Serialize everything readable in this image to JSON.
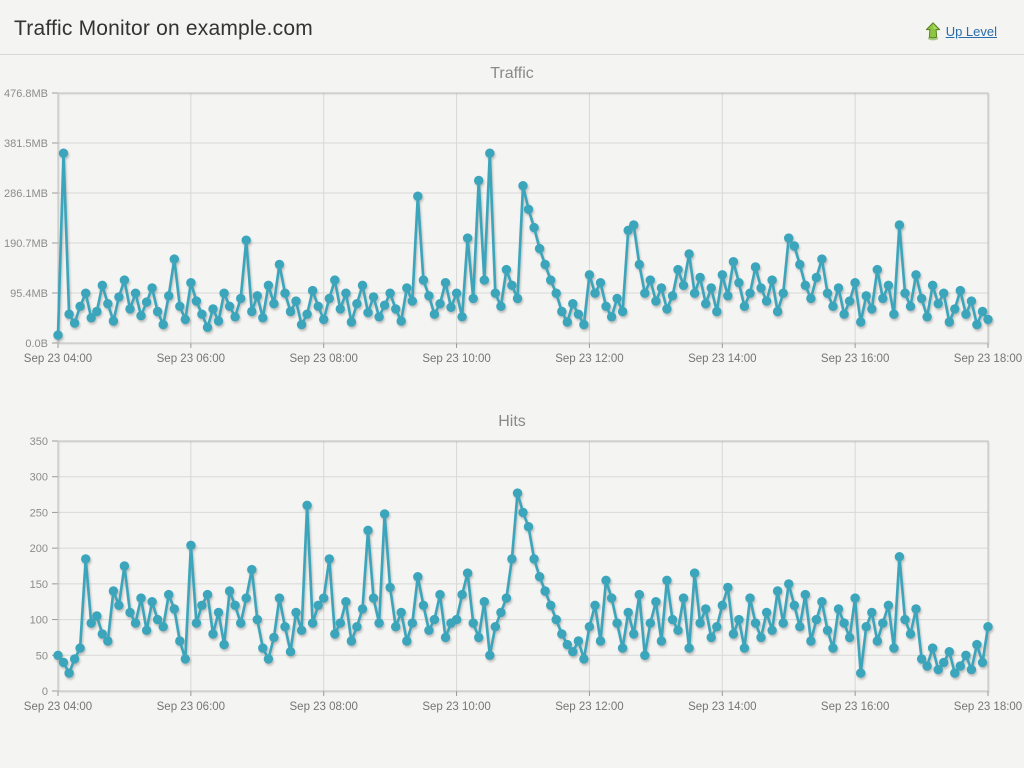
{
  "page": {
    "title": "Traffic Monitor on example.com",
    "up_level_label": "Up Level"
  },
  "colors": {
    "page_bg": "#f4f4f2",
    "series": "#3ba5bc",
    "grid": "#d8d8d6",
    "border": "#bfbfbd",
    "tick": "#9a9a98",
    "y_label_text": "#8c8c8c",
    "x_label_text": "#757575",
    "title_text": "#8a8a8a",
    "header_text": "#333333",
    "link": "#2a6da9",
    "arrow_green": "#8dc63f",
    "arrow_green_dark": "#55801f"
  },
  "icons": {
    "up_level": "up-arrow-icon"
  },
  "chart_data": [
    {
      "type": "line",
      "title": "Traffic",
      "unit": "MB",
      "legend": "none",
      "grid": true,
      "markers": true,
      "x_tick_labels": [
        "Sep 23 04:00",
        "Sep 23 06:00",
        "Sep 23 08:00",
        "Sep 23 10:00",
        "Sep 23 12:00",
        "Sep 23 14:00",
        "Sep 23 16:00",
        "Sep 23 18:00"
      ],
      "y_tick_labels": [
        "0.0B",
        "95.4MB",
        "190.7MB",
        "286.1MB",
        "381.5MB",
        "476.8MB"
      ],
      "y_tick_values": [
        0,
        95.4,
        190.7,
        286.1,
        381.5,
        476.8
      ],
      "ylim": [
        0,
        476.8
      ],
      "values": [
        15,
        362,
        55,
        38,
        70,
        95,
        48,
        60,
        110,
        75,
        42,
        88,
        120,
        65,
        95,
        52,
        78,
        105,
        60,
        35,
        90,
        160,
        70,
        45,
        115,
        80,
        55,
        30,
        65,
        42,
        95,
        70,
        50,
        85,
        196,
        60,
        90,
        48,
        110,
        75,
        150,
        95,
        60,
        80,
        35,
        55,
        100,
        70,
        45,
        85,
        120,
        65,
        95,
        40,
        75,
        110,
        58,
        88,
        50,
        72,
        95,
        65,
        42,
        105,
        80,
        280,
        120,
        90,
        55,
        75,
        115,
        68,
        95,
        50,
        200,
        85,
        310,
        120,
        362,
        95,
        70,
        140,
        110,
        85,
        300,
        255,
        220,
        180,
        150,
        120,
        95,
        60,
        40,
        75,
        55,
        35,
        130,
        95,
        115,
        70,
        50,
        85,
        60,
        215,
        225,
        150,
        95,
        120,
        80,
        105,
        65,
        90,
        140,
        110,
        170,
        95,
        125,
        75,
        105,
        60,
        130,
        90,
        155,
        115,
        70,
        95,
        145,
        105,
        80,
        120,
        60,
        95,
        200,
        185,
        150,
        110,
        85,
        125,
        160,
        95,
        70,
        105,
        55,
        80,
        115,
        40,
        90,
        65,
        140,
        85,
        110,
        55,
        225,
        95,
        70,
        130,
        85,
        50,
        110,
        75,
        95,
        40,
        65,
        100,
        55,
        80,
        35,
        60,
        45
      ]
    },
    {
      "type": "line",
      "title": "Hits",
      "unit": "hits",
      "legend": "none",
      "grid": true,
      "markers": true,
      "x_tick_labels": [
        "Sep 23 04:00",
        "Sep 23 06:00",
        "Sep 23 08:00",
        "Sep 23 10:00",
        "Sep 23 12:00",
        "Sep 23 14:00",
        "Sep 23 16:00",
        "Sep 23 18:00"
      ],
      "y_tick_labels": [
        "0",
        "50",
        "100",
        "150",
        "200",
        "250",
        "300",
        "350"
      ],
      "y_tick_values": [
        0,
        50,
        100,
        150,
        200,
        250,
        300,
        350
      ],
      "ylim": [
        0,
        350
      ],
      "values": [
        50,
        40,
        25,
        45,
        60,
        185,
        95,
        105,
        80,
        70,
        140,
        120,
        175,
        110,
        95,
        130,
        85,
        125,
        100,
        90,
        135,
        115,
        70,
        45,
        204,
        95,
        120,
        135,
        80,
        110,
        65,
        140,
        120,
        95,
        130,
        170,
        100,
        60,
        45,
        75,
        130,
        90,
        55,
        110,
        85,
        260,
        95,
        120,
        130,
        185,
        80,
        95,
        125,
        70,
        90,
        115,
        225,
        130,
        95,
        248,
        145,
        90,
        110,
        70,
        95,
        160,
        120,
        85,
        100,
        135,
        75,
        95,
        100,
        135,
        165,
        95,
        75,
        125,
        50,
        90,
        110,
        130,
        185,
        277,
        250,
        230,
        185,
        160,
        140,
        120,
        100,
        80,
        65,
        55,
        70,
        45,
        90,
        120,
        70,
        155,
        130,
        95,
        60,
        110,
        80,
        135,
        50,
        95,
        125,
        70,
        155,
        100,
        85,
        130,
        60,
        165,
        95,
        115,
        75,
        90,
        120,
        145,
        80,
        100,
        60,
        130,
        95,
        75,
        110,
        85,
        140,
        95,
        150,
        120,
        90,
        135,
        70,
        100,
        125,
        85,
        60,
        115,
        95,
        75,
        130,
        25,
        90,
        110,
        70,
        95,
        120,
        60,
        188,
        100,
        80,
        115,
        45,
        35,
        60,
        30,
        40,
        55,
        25,
        35,
        50,
        30,
        65,
        40,
        90
      ]
    }
  ]
}
